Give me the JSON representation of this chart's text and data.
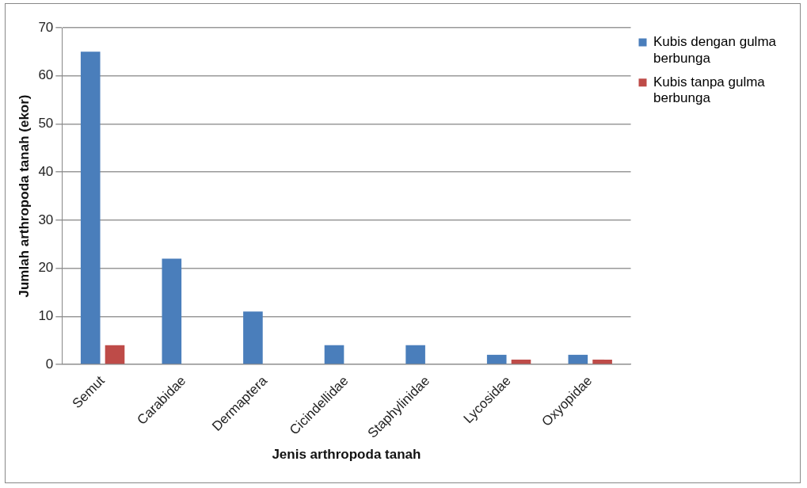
{
  "chart_data": {
    "type": "bar",
    "xlabel": "Jenis arthropoda tanah",
    "ylabel": "Jumlah arthropoda tanah (ekor)",
    "categories": [
      "Semut",
      "Carabidae",
      "Dermaptera",
      "Cicindellidae",
      "Staphylinidae",
      "Lycosidae",
      "Oxyopidae"
    ],
    "series": [
      {
        "name": "Kubis dengan gulma berbunga",
        "color": "#4a7ebb",
        "values": [
          65,
          22,
          11,
          4,
          4,
          2,
          2
        ]
      },
      {
        "name": "Kubis tanpa gulma berbunga",
        "color": "#be4b48",
        "values": [
          4,
          0,
          0,
          0,
          0,
          1,
          1
        ]
      }
    ],
    "ylim": [
      0,
      70
    ],
    "yticks": [
      0,
      10,
      20,
      30,
      40,
      50,
      60,
      70
    ],
    "grid": "y",
    "legend": "right"
  }
}
